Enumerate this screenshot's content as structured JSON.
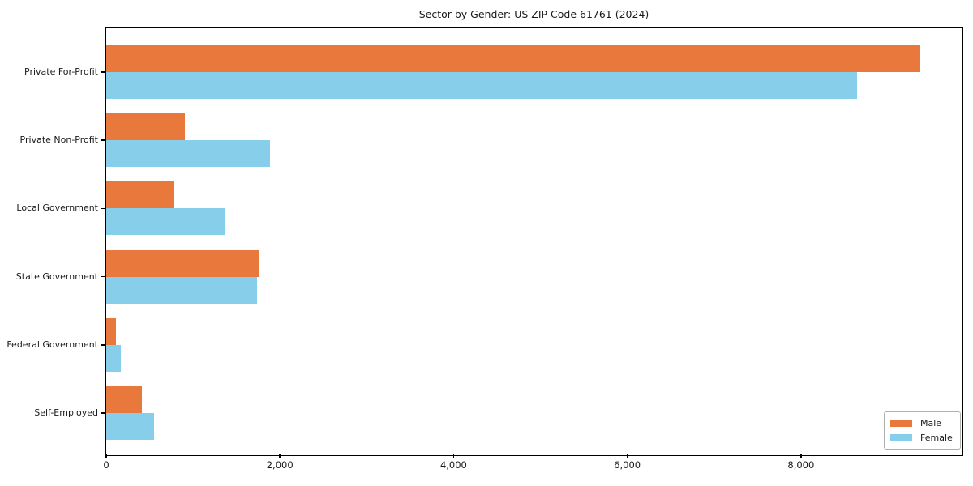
{
  "chart_data": {
    "type": "bar",
    "orientation": "horizontal",
    "title": "Sector by Gender: US ZIP Code 61761 (2024)",
    "categories": [
      "Private For-Profit",
      "Private Non-Profit",
      "Local Government",
      "State Government",
      "Federal Government",
      "Self-Employed"
    ],
    "series": [
      {
        "name": "Male",
        "color": "#E8783C",
        "values": [
          9370,
          905,
          785,
          1760,
          115,
          410
        ]
      },
      {
        "name": "Female",
        "color": "#87CEEB",
        "values": [
          8645,
          1885,
          1370,
          1735,
          165,
          555
        ]
      }
    ],
    "xlim": [
      0,
      9850
    ],
    "xticks": [
      0,
      2000,
      4000,
      6000,
      8000
    ],
    "xtick_labels": [
      "0",
      "2,000",
      "4,000",
      "6,000",
      "8,000"
    ],
    "xlabel": "",
    "ylabel": "",
    "grid": false,
    "legend_position": "lower right",
    "plot_background": "#ffffff",
    "spine_color": "#000000"
  },
  "legend": {
    "items": [
      {
        "label": "Male",
        "color": "#E8783C"
      },
      {
        "label": "Female",
        "color": "#87CEEB"
      }
    ]
  }
}
